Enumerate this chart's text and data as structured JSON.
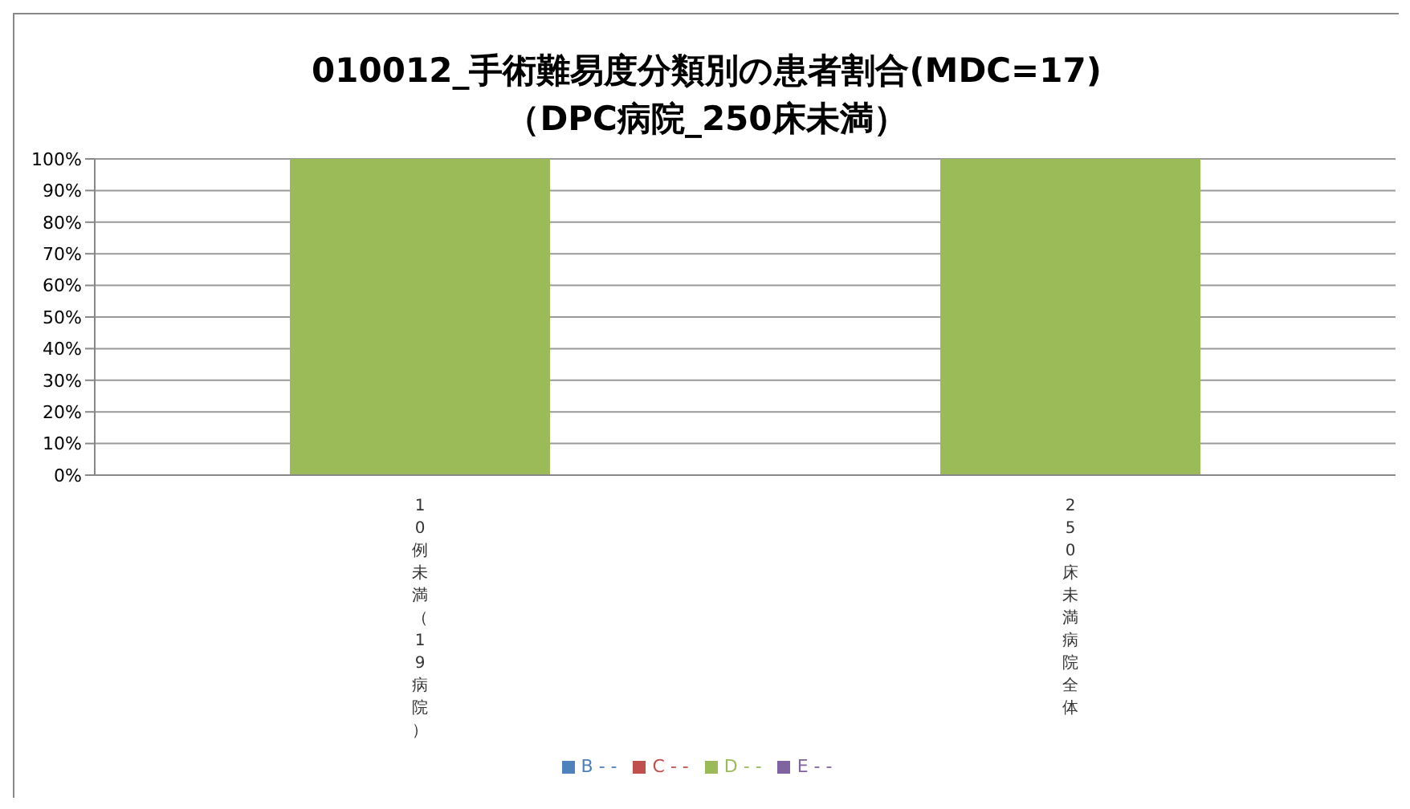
{
  "chart_data": {
    "type": "bar",
    "title": "010012_手術難易度分類別の患者割合(MDC=17)",
    "subtitle": "（DPC病院_250床未満）",
    "categories": [
      "10例未満（19病院）",
      "250床未満病院全体"
    ],
    "stacked": true,
    "series": [
      {
        "name": "B - -",
        "color": "#4f81bd",
        "values": [
          0,
          0
        ]
      },
      {
        "name": "C - -",
        "color": "#c0504d",
        "values": [
          0,
          0
        ]
      },
      {
        "name": "D - -",
        "color": "#9bbb59",
        "values": [
          100,
          100
        ]
      },
      {
        "name": "E - -",
        "color": "#8064a2",
        "values": [
          0,
          0
        ]
      }
    ],
    "ylim": [
      0,
      100
    ],
    "yticks": [
      {
        "value": 0,
        "label": "0%"
      },
      {
        "value": 10,
        "label": "10%"
      },
      {
        "value": 20,
        "label": "20%"
      },
      {
        "value": 30,
        "label": "30%"
      },
      {
        "value": 40,
        "label": "40%"
      },
      {
        "value": 50,
        "label": "50%"
      },
      {
        "value": 60,
        "label": "60%"
      },
      {
        "value": 70,
        "label": "70%"
      },
      {
        "value": 80,
        "label": "80%"
      },
      {
        "value": 90,
        "label": "90%"
      },
      {
        "value": 100,
        "label": "100%"
      }
    ],
    "grid": "y",
    "legend": "bottom"
  }
}
